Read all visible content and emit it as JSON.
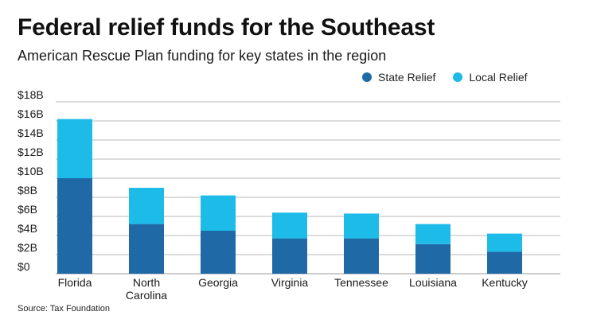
{
  "header": {
    "title": "Federal relief funds for the Southeast",
    "subtitle": "American Rescue Plan funding for key states in the region"
  },
  "legend": {
    "items": [
      {
        "label": "State Relief",
        "color": "#1f6aa6"
      },
      {
        "label": "Local Relief",
        "color": "#1dbbe8"
      }
    ]
  },
  "footer": {
    "source": "Source: Tax Foundation"
  },
  "chart_data": {
    "type": "bar",
    "stacked": true,
    "categories": [
      [
        "Florida"
      ],
      [
        "North",
        "Carolina"
      ],
      [
        "Georgia"
      ],
      [
        "Virginia"
      ],
      [
        "Tennessee"
      ],
      [
        "Louisiana"
      ],
      [
        "Kentucky"
      ]
    ],
    "series": [
      {
        "name": "State Relief",
        "color": "#1f6aa6",
        "values": [
          10.0,
          5.2,
          4.5,
          3.7,
          3.7,
          3.1,
          2.3
        ]
      },
      {
        "name": "Local Relief",
        "color": "#1dbbe8",
        "values": [
          6.2,
          3.8,
          3.7,
          2.7,
          2.6,
          2.1,
          1.9
        ]
      }
    ],
    "yticks": [
      "$0",
      "$2B",
      "$4B",
      "$6B",
      "$8B",
      "$10B",
      "$12B",
      "$14B",
      "$16B",
      "$18B"
    ],
    "ylim": [
      0,
      18
    ],
    "grid": true,
    "legend_position": "top-right"
  }
}
